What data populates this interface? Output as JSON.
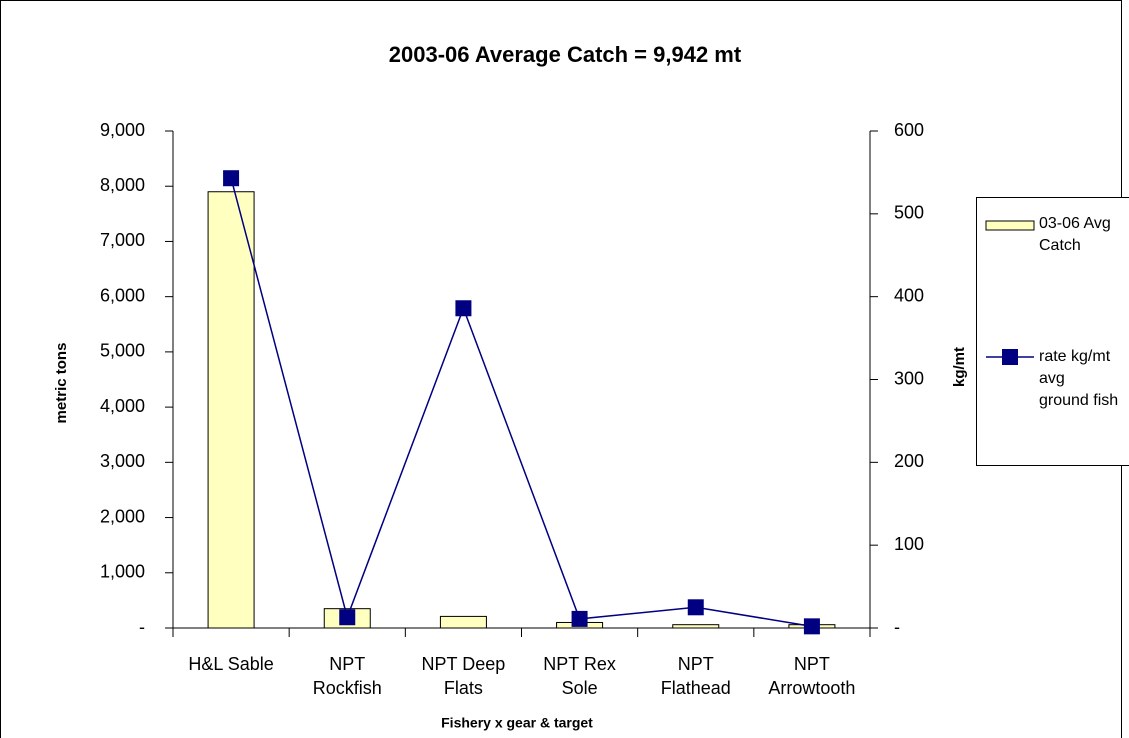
{
  "chart_data": {
    "type": "bar_line",
    "title": "2003-06 Average Catch = 9,942 mt",
    "xlabel": "Fishery x gear & target",
    "ylabel": "metric tons",
    "y2label": "kg/mt",
    "categories": [
      "H&L Sable",
      "NPT Rockfish",
      "NPT Deep Flats",
      "NPT Rex Sole",
      "NPT Flathead",
      "NPT Arrowtooth"
    ],
    "series": [
      {
        "name": "03-06 Avg Catch",
        "kind": "bar",
        "color": "#ffffc0",
        "values": [
          7900,
          350,
          210,
          100,
          60,
          60
        ]
      },
      {
        "name": "rate kg/mt avg ground fish",
        "kind": "line",
        "axis": "y2",
        "color": "#000080",
        "values": [
          543,
          13,
          386,
          11,
          25,
          2
        ]
      }
    ],
    "ylim": [
      0,
      9000
    ],
    "yticks": [
      {
        "value": 0,
        "label": "-"
      },
      {
        "value": 1000,
        "label": "1,000"
      },
      {
        "value": 2000,
        "label": "2,000"
      },
      {
        "value": 3000,
        "label": "3,000"
      },
      {
        "value": 4000,
        "label": "4,000"
      },
      {
        "value": 5000,
        "label": "5,000"
      },
      {
        "value": 6000,
        "label": "6,000"
      },
      {
        "value": 7000,
        "label": "7,000"
      },
      {
        "value": 8000,
        "label": "8,000"
      },
      {
        "value": 9000,
        "label": "9,000"
      }
    ],
    "y2lim": [
      0,
      600
    ],
    "y2ticks": [
      {
        "value": 0,
        "label": "-"
      },
      100,
      200,
      300,
      400,
      500,
      600
    ],
    "legend": "right"
  }
}
